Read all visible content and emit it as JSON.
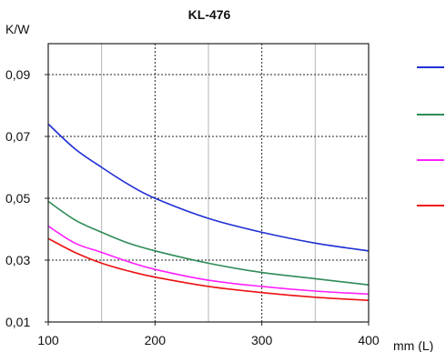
{
  "chart_data": {
    "type": "line",
    "title": "KL-476",
    "ylabel": "K/W",
    "xlabel": "mm (L)",
    "xlim": [
      100,
      400
    ],
    "ylim": [
      0.01,
      0.1
    ],
    "x_ticks": [
      100,
      200,
      300,
      400
    ],
    "x_tick_labels": [
      "100",
      "200",
      "300",
      "400"
    ],
    "y_ticks": [
      0.01,
      0.03,
      0.05,
      0.07,
      0.09
    ],
    "y_tick_labels": [
      "0,01",
      "0,03",
      "0,05",
      "0,07",
      "0,09"
    ],
    "x_gridlines_solid": [
      150,
      250,
      350
    ],
    "x_gridlines_dashed": [
      200,
      300
    ],
    "y_gridlines_dashed": [
      0.03,
      0.05,
      0.07,
      0.09
    ],
    "grid": true,
    "legend_position": "right",
    "series": [
      {
        "color": "#1f2fd4",
        "x": [
          100,
          125,
          150,
          175,
          200,
          250,
          300,
          350,
          400
        ],
        "values": [
          0.074,
          0.066,
          0.06,
          0.0545,
          0.05,
          0.0435,
          0.039,
          0.0355,
          0.033
        ]
      },
      {
        "color": "#2e8b57",
        "x": [
          100,
          125,
          150,
          175,
          200,
          250,
          300,
          350,
          400
        ],
        "values": [
          0.049,
          0.043,
          0.039,
          0.0355,
          0.033,
          0.029,
          0.026,
          0.024,
          0.022
        ]
      },
      {
        "color": "#ff1fff",
        "x": [
          100,
          125,
          150,
          175,
          200,
          250,
          300,
          350,
          400
        ],
        "values": [
          0.041,
          0.0355,
          0.0325,
          0.0295,
          0.027,
          0.0235,
          0.0215,
          0.02,
          0.019
        ]
      },
      {
        "color": "#ee1111",
        "x": [
          100,
          125,
          150,
          175,
          200,
          250,
          300,
          350,
          400
        ],
        "values": [
          0.037,
          0.0325,
          0.029,
          0.0265,
          0.0245,
          0.0215,
          0.0195,
          0.018,
          0.017
        ]
      }
    ]
  }
}
